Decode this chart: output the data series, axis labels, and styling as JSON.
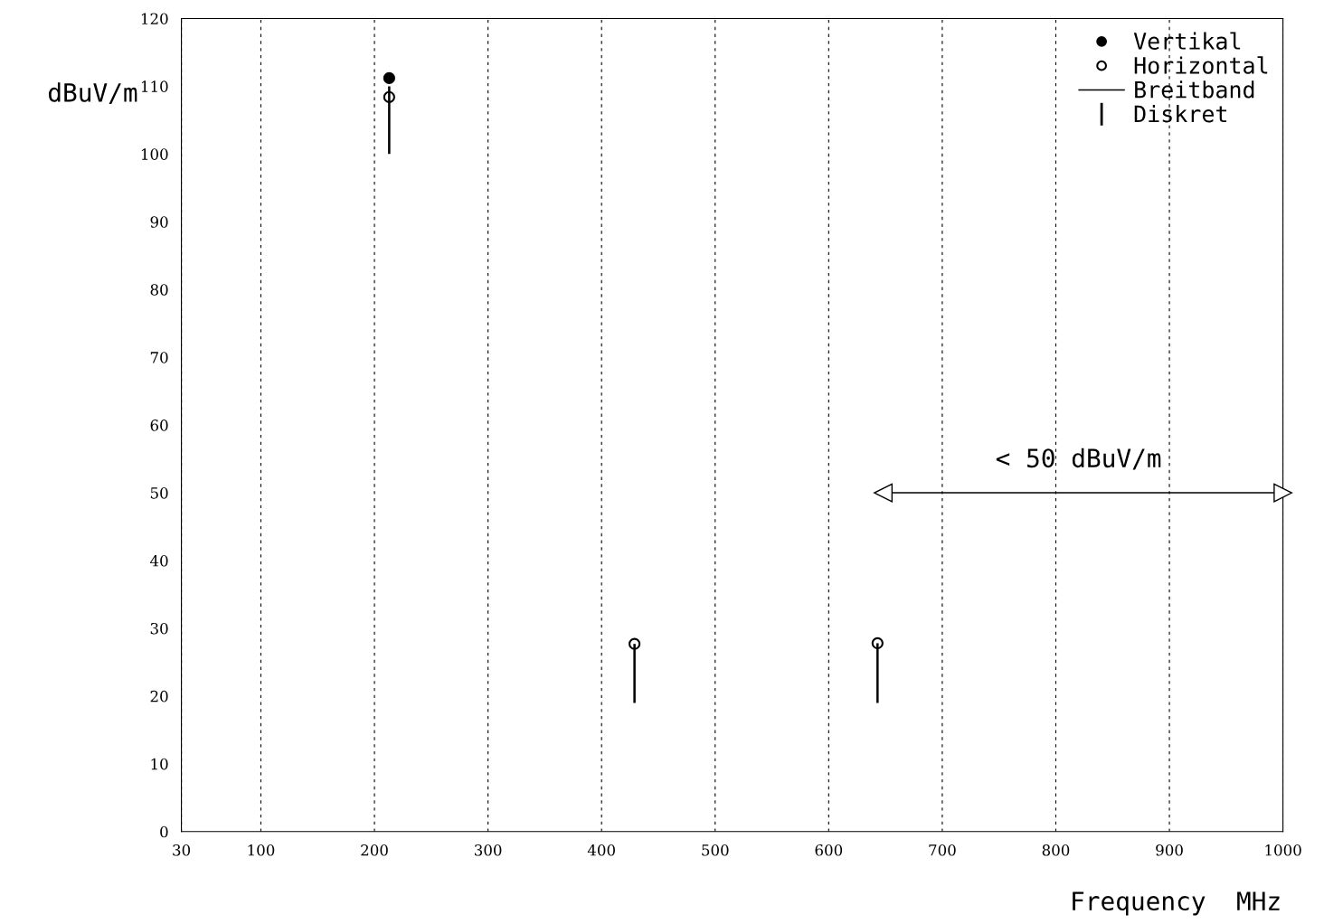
{
  "chart_data": {
    "type": "scatter",
    "ylabel": "dBuV/m",
    "xlabel": "Frequency  MHz",
    "xlim": [
      30,
      1000
    ],
    "ylim": [
      0,
      120
    ],
    "xticks": [
      30,
      100,
      200,
      300,
      400,
      500,
      600,
      700,
      800,
      900,
      1000
    ],
    "yticks": [
      0,
      10,
      20,
      30,
      40,
      50,
      60,
      70,
      80,
      90,
      100,
      110,
      120
    ],
    "grid": "x",
    "legend": "top right",
    "series": [
      {
        "name": "Vertikal",
        "marker": "circle",
        "color": "#000000",
        "x": [
          213
        ],
        "values": [
          111.2
        ]
      },
      {
        "name": "Horizontal",
        "marker": "circle",
        "color": "#ffffff",
        "x": [
          213,
          429,
          643
        ],
        "values": [
          108.4,
          27.7,
          27.8
        ]
      },
      {
        "name": "Breitband",
        "type": "line",
        "color": "#000000"
      },
      {
        "name": "Diskret",
        "type": "bar",
        "color": "#000000",
        "x": [
          213,
          429,
          643
        ],
        "base": [
          100,
          19,
          19
        ],
        "values": [
          10,
          8.7,
          8.8
        ]
      },
      {
        "type": "line",
        "color": "#000000",
        "marker": "triangle",
        "x": [
          648,
          1000
        ],
        "values": [
          50,
          50
        ]
      }
    ],
    "annotations": [
      {
        "text": "< 50 dBuV/m",
        "x": 820,
        "y": 50
      }
    ]
  }
}
